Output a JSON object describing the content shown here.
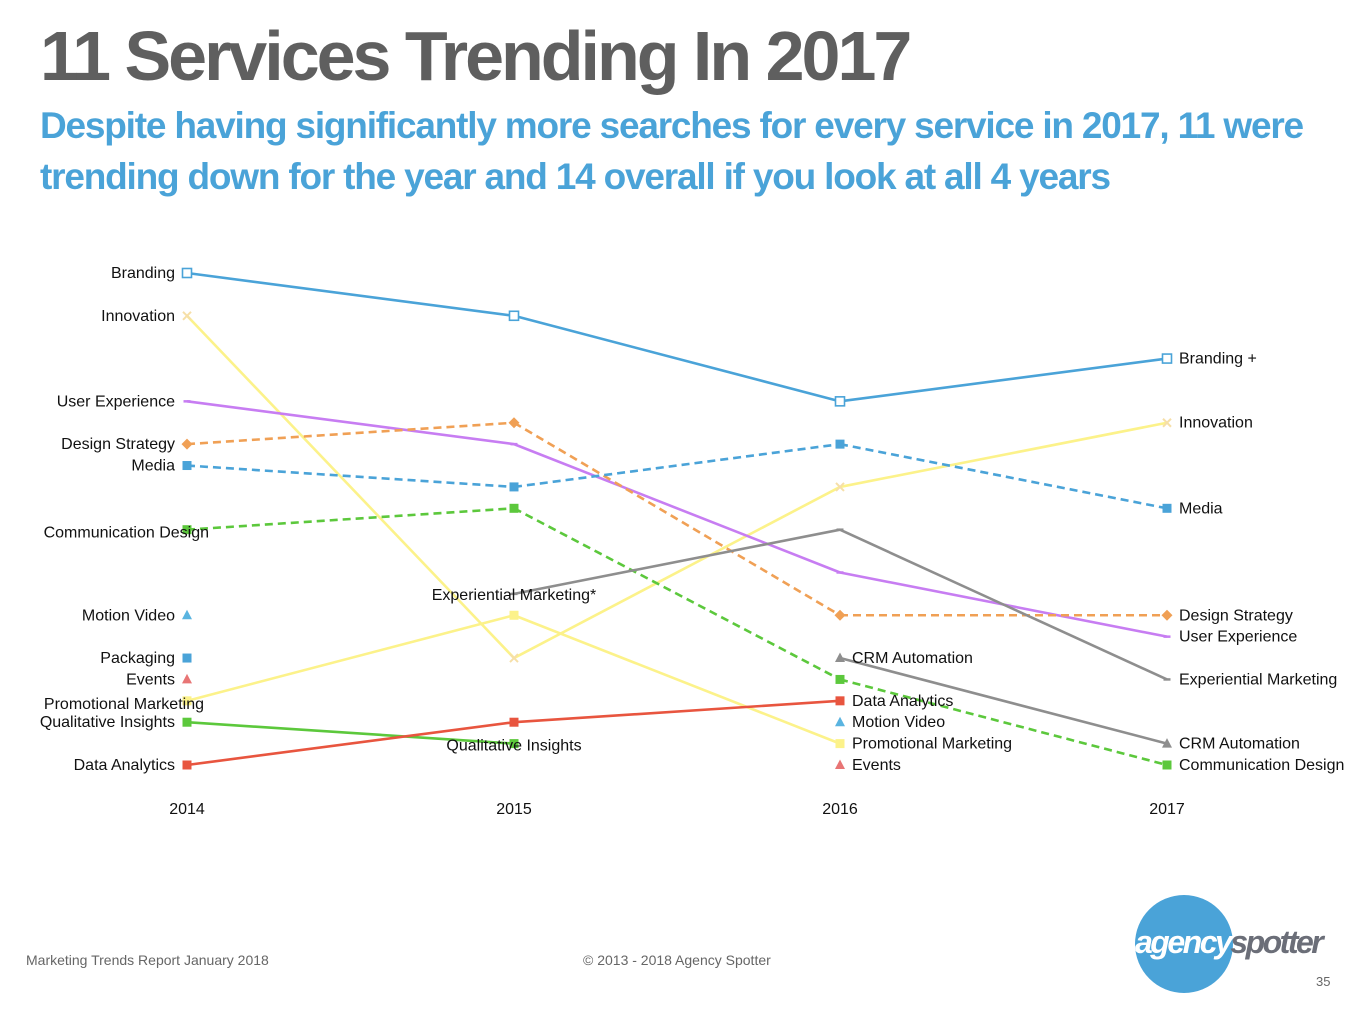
{
  "slide": {
    "title": "11 Services Trending In 2017",
    "subtitle": "Despite having significantly more searches for every service in 2017, 11 were trending down for the year and 14 overall if you look at all 4 years"
  },
  "footer": {
    "left": "Marketing Trends Report January 2018",
    "center": "© 2013 - 2018 Agency Spotter",
    "page_number": "35",
    "logo_part1": "agency",
    "logo_part2": "spotter"
  },
  "colors": {
    "title": "#5f5f5f",
    "subtitle": "#4aa3d8",
    "brand": "#4aa3d8"
  },
  "chart_data": {
    "type": "line",
    "subtype": "rank bump chart (rank 1 = top)",
    "title": "",
    "xlabel": "",
    "ylabel": "",
    "categories": [
      "2014",
      "2015",
      "2016",
      "2017"
    ],
    "rank_range": [
      1,
      24
    ],
    "grid": false,
    "series": [
      {
        "name": "Branding",
        "color": "#4aa3d8",
        "dashed": false,
        "marker": "square-open",
        "values": [
          1,
          3,
          7,
          5
        ],
        "labels": {
          "2014": "Branding",
          "2017": "Branding +"
        }
      },
      {
        "name": "Innovation",
        "color": "#fcf28a",
        "dashed": false,
        "marker": "x",
        "values": [
          3,
          19,
          11,
          8
        ],
        "labels": {
          "2014": "Innovation",
          "2017": "Innovation"
        }
      },
      {
        "name": "User Experience",
        "color": "#c77df2",
        "dashed": false,
        "marker": "dash",
        "values": [
          7,
          9,
          15,
          18
        ],
        "labels": {
          "2014": "User Experience",
          "2017": "User Experience"
        }
      },
      {
        "name": "Design Strategy",
        "color": "#f0a055",
        "dashed": true,
        "marker": "diamond",
        "values": [
          9,
          8,
          17,
          17
        ],
        "labels": {
          "2014": "Design Strategy",
          "2017": "Design Strategy"
        }
      },
      {
        "name": "Media",
        "color": "#4aa3d8",
        "dashed": true,
        "marker": "square",
        "values": [
          10,
          11,
          9,
          12
        ],
        "labels": {
          "2014": "Media",
          "2017": "Media"
        }
      },
      {
        "name": "Communication Design",
        "color": "#5cc83c",
        "dashed": true,
        "marker": "square",
        "values": [
          13,
          12,
          20,
          24
        ],
        "labels": {
          "2014": "Communication Design",
          "2017": "Communication Design"
        }
      },
      {
        "name": "Experiential Marketing",
        "color": "#8e8e8e",
        "dashed": false,
        "marker": "dash",
        "values": [
          null,
          16,
          13,
          20
        ],
        "labels": {
          "2015": "Experiential Marketing*",
          "2017": "Experiential Marketing"
        }
      },
      {
        "name": "CRM Automation",
        "color": "#8e8e8e",
        "dashed": false,
        "marker": "triangle",
        "values": [
          null,
          null,
          19,
          23
        ],
        "labels": {
          "2016": "CRM Automation",
          "2017": "CRM Automation"
        }
      },
      {
        "name": "Promotional Marketing",
        "color": "#fcf28a",
        "dashed": false,
        "marker": "square",
        "values": [
          21,
          17,
          23,
          null
        ],
        "labels": {
          "2014": "Promotional Marketing",
          "2016": "Promotional Marketing"
        }
      },
      {
        "name": "Qualitative Insights",
        "color": "#5cc83c",
        "dashed": false,
        "marker": "square",
        "values": [
          22,
          23,
          null,
          null
        ],
        "labels": {
          "2014": "Qualitative Insights",
          "2015": "Qualitative Insights"
        }
      },
      {
        "name": "Data Analytics",
        "color": "#e8553f",
        "dashed": false,
        "marker": "square",
        "values": [
          24,
          22,
          21,
          null
        ],
        "labels": {
          "2014": "Data Analytics",
          "2016": "Data Analytics"
        }
      },
      {
        "name": "Motion Video",
        "color": "#5ab4e0",
        "dashed": false,
        "marker": "triangle",
        "values": [
          17,
          null,
          22,
          null
        ],
        "labels": {
          "2014": "Motion Video",
          "2016": "Motion Video"
        }
      },
      {
        "name": "Packaging",
        "color": "#4aa3d8",
        "dashed": false,
        "marker": "square",
        "values": [
          19,
          null,
          null,
          null
        ],
        "labels": {
          "2014": "Packaging"
        }
      },
      {
        "name": "Events",
        "color": "#e87575",
        "dashed": false,
        "marker": "triangle",
        "values": [
          20,
          null,
          24,
          null
        ],
        "labels": {
          "2014": "Events",
          "2016": "Events"
        }
      }
    ]
  }
}
